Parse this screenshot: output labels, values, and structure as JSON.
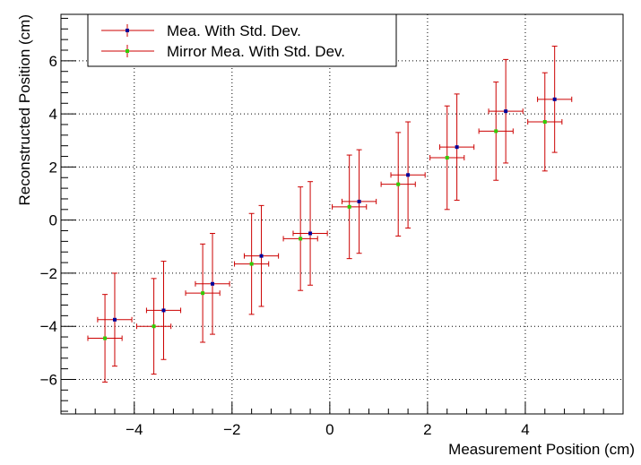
{
  "chart_data": {
    "type": "scatter",
    "xlabel": "Measurement Position (cm)",
    "ylabel": "Reconstructed Position (cm)",
    "xlim": [
      -5.5,
      6.0
    ],
    "ylim": [
      -7.3,
      7.75
    ],
    "x_ticks": [
      -4,
      -2,
      0,
      2,
      4
    ],
    "x_tick_labels": [
      "−4",
      "−2",
      "0",
      "2",
      "4"
    ],
    "y_ticks": [
      -6,
      -4,
      -2,
      0,
      2,
      4,
      6
    ],
    "y_tick_labels": [
      "−6",
      "−4",
      "−2",
      "0",
      "2",
      "4",
      "6"
    ],
    "grid": true,
    "legend_position": "top-left",
    "colors": {
      "error_bar": "#cc0000",
      "frame": "#000000",
      "grid": "#000000"
    },
    "series": [
      {
        "name": "Mea. With Std. Dev.",
        "marker_color": "#000099",
        "points": [
          {
            "x": -4.4,
            "y": -3.75,
            "xerr": 0.35,
            "yerr": 1.75
          },
          {
            "x": -3.4,
            "y": -3.4,
            "xerr": 0.35,
            "yerr": 1.85
          },
          {
            "x": -2.4,
            "y": -2.4,
            "xerr": 0.35,
            "yerr": 1.9
          },
          {
            "x": -1.4,
            "y": -1.35,
            "xerr": 0.35,
            "yerr": 1.9
          },
          {
            "x": -0.4,
            "y": -0.5,
            "xerr": 0.35,
            "yerr": 1.95
          },
          {
            "x": 0.6,
            "y": 0.7,
            "xerr": 0.35,
            "yerr": 1.95
          },
          {
            "x": 1.6,
            "y": 1.7,
            "xerr": 0.35,
            "yerr": 2.0
          },
          {
            "x": 2.6,
            "y": 2.75,
            "xerr": 0.35,
            "yerr": 2.0
          },
          {
            "x": 3.6,
            "y": 4.1,
            "xerr": 0.35,
            "yerr": 1.95
          },
          {
            "x": 4.6,
            "y": 4.55,
            "xerr": 0.35,
            "yerr": 2.0
          }
        ]
      },
      {
        "name": "Mirror Mea. With Std. Dev.",
        "marker_color": "#33cc00",
        "points": [
          {
            "x": -4.6,
            "y": -4.45,
            "xerr": 0.35,
            "yerr": 1.65
          },
          {
            "x": -3.6,
            "y": -4.0,
            "xerr": 0.35,
            "yerr": 1.8
          },
          {
            "x": -2.6,
            "y": -2.75,
            "xerr": 0.35,
            "yerr": 1.85
          },
          {
            "x": -1.6,
            "y": -1.65,
            "xerr": 0.35,
            "yerr": 1.9
          },
          {
            "x": -0.6,
            "y": -0.7,
            "xerr": 0.35,
            "yerr": 1.95
          },
          {
            "x": 0.4,
            "y": 0.5,
            "xerr": 0.35,
            "yerr": 1.95
          },
          {
            "x": 1.4,
            "y": 1.35,
            "xerr": 0.35,
            "yerr": 1.95
          },
          {
            "x": 2.4,
            "y": 2.35,
            "xerr": 0.35,
            "yerr": 1.95
          },
          {
            "x": 3.4,
            "y": 3.35,
            "xerr": 0.35,
            "yerr": 1.85
          },
          {
            "x": 4.4,
            "y": 3.7,
            "xerr": 0.35,
            "yerr": 1.85
          }
        ]
      }
    ]
  }
}
